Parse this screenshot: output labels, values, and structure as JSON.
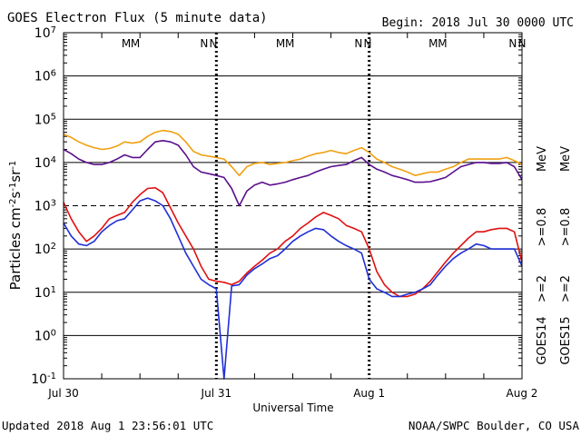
{
  "chart_data": {
    "type": "line",
    "title": "GOES Electron Flux (5 minute data)",
    "begin_label": "Begin: 2018 Jul 30 0000 UTC",
    "xlabel": "Universal Time",
    "ylabel": "Particles cm-2s-1sr-1",
    "y_scale": "log",
    "ylim": [
      0.1,
      10000000
    ],
    "y_ticks": [
      {
        "base": "10",
        "exp": "-1"
      },
      {
        "base": "10",
        "exp": "0"
      },
      {
        "base": "10",
        "exp": "1"
      },
      {
        "base": "10",
        "exp": "2"
      },
      {
        "base": "10",
        "exp": "3"
      },
      {
        "base": "10",
        "exp": "4"
      },
      {
        "base": "10",
        "exp": "5"
      },
      {
        "base": "10",
        "exp": "6"
      },
      {
        "base": "10",
        "exp": "7"
      }
    ],
    "x_range_days": [
      0,
      3
    ],
    "x_tick_labels": [
      "Jul 30",
      "Jul 31",
      "Aug 1",
      "Aug 2"
    ],
    "grid": true,
    "threshold_lines": [
      1000
    ],
    "colors": {
      "goes14_gt2": "#1f2fd6",
      "goes15_gt2": "#e01010",
      "goes14_gt08": "#5a0f8c",
      "goes15_gt08": "#f0a010",
      "M_color_goes14": "#1f2fd6",
      "M_color_goes15": "#e01010"
    },
    "markers": [
      {
        "letter": "M",
        "t": 0.41,
        "sat": "goes14"
      },
      {
        "letter": "M",
        "t": 0.47,
        "sat": "goes15"
      },
      {
        "letter": "N",
        "t": 0.92,
        "sat": "goes14"
      },
      {
        "letter": "N",
        "t": 0.98,
        "sat": "goes15"
      },
      {
        "letter": "M",
        "t": 1.42,
        "sat": "goes14"
      },
      {
        "letter": "M",
        "t": 1.48,
        "sat": "goes15"
      },
      {
        "letter": "N",
        "t": 1.93,
        "sat": "goes14"
      },
      {
        "letter": "N",
        "t": 1.99,
        "sat": "goes15"
      },
      {
        "letter": "M",
        "t": 2.42,
        "sat": "goes14"
      },
      {
        "letter": "M",
        "t": 2.48,
        "sat": "goes15"
      },
      {
        "letter": "N",
        "t": 2.94,
        "sat": "goes14"
      },
      {
        "letter": "N",
        "t": 3.0,
        "sat": "goes15"
      }
    ],
    "legend": {
      "gt2_14": ">=2",
      "gt2_15": ">=2",
      "gt08_14": ">=0.8",
      "gt08_15": ">=0.8",
      "mev": "MeV",
      "goes14": "GOES14",
      "goes15": "GOES15"
    },
    "series": [
      {
        "key": "goes15_gt08",
        "t": [
          0,
          0.05,
          0.1,
          0.15,
          0.2,
          0.25,
          0.3,
          0.35,
          0.4,
          0.45,
          0.5,
          0.55,
          0.6,
          0.65,
          0.7,
          0.75,
          0.8,
          0.85,
          0.9,
          0.95,
          1.0,
          1.05,
          1.1,
          1.15,
          1.2,
          1.25,
          1.3,
          1.35,
          1.4,
          1.45,
          1.5,
          1.55,
          1.6,
          1.65,
          1.7,
          1.75,
          1.8,
          1.85,
          1.9,
          1.95,
          2.0,
          2.05,
          2.1,
          2.15,
          2.2,
          2.25,
          2.3,
          2.35,
          2.4,
          2.45,
          2.5,
          2.55,
          2.6,
          2.65,
          2.7,
          2.75,
          2.8,
          2.85,
          2.9,
          2.95,
          3.0
        ],
        "values": [
          45000,
          38000,
          30000,
          25000,
          22000,
          20000,
          21000,
          24000,
          30000,
          28000,
          30000,
          40000,
          50000,
          55000,
          52000,
          45000,
          30000,
          18000,
          15000,
          14000,
          13000,
          12000,
          8000,
          5000,
          8000,
          9500,
          10000,
          9000,
          9500,
          10000,
          11000,
          12000,
          14000,
          16000,
          17000,
          19000,
          17000,
          16000,
          19000,
          22000,
          17000,
          12000,
          10000,
          8000,
          7000,
          6000,
          5000,
          5500,
          6000,
          6000,
          7000,
          8000,
          10000,
          12000,
          12000,
          12000,
          12000,
          12000,
          13000,
          11000,
          9000
        ]
      },
      {
        "key": "goes14_gt08",
        "t": [
          0,
          0.05,
          0.1,
          0.15,
          0.2,
          0.25,
          0.3,
          0.35,
          0.4,
          0.45,
          0.5,
          0.55,
          0.6,
          0.65,
          0.7,
          0.75,
          0.8,
          0.85,
          0.9,
          0.95,
          1.0,
          1.05,
          1.1,
          1.15,
          1.2,
          1.25,
          1.3,
          1.35,
          1.4,
          1.45,
          1.5,
          1.55,
          1.6,
          1.65,
          1.7,
          1.75,
          1.8,
          1.85,
          1.9,
          1.95,
          2.0,
          2.05,
          2.1,
          2.15,
          2.2,
          2.25,
          2.3,
          2.35,
          2.4,
          2.45,
          2.5,
          2.55,
          2.6,
          2.65,
          2.7,
          2.75,
          2.8,
          2.85,
          2.9,
          2.95,
          3.0
        ],
        "values": [
          20000,
          16000,
          12000,
          10000,
          9000,
          9000,
          10000,
          12000,
          15000,
          13000,
          13000,
          20000,
          30000,
          32000,
          30000,
          25000,
          15000,
          8000,
          6000,
          5500,
          5000,
          4500,
          2500,
          1000,
          2200,
          3000,
          3500,
          3000,
          3200,
          3500,
          4000,
          4500,
          5000,
          6000,
          7000,
          8000,
          8500,
          9000,
          11000,
          13000,
          9000,
          7000,
          6000,
          5000,
          4500,
          4000,
          3500,
          3500,
          3600,
          4000,
          4500,
          6000,
          8000,
          9000,
          10000,
          10000,
          9500,
          9500,
          10000,
          8000,
          4000
        ]
      },
      {
        "key": "goes15_gt2",
        "t": [
          0,
          0.05,
          0.1,
          0.15,
          0.2,
          0.25,
          0.3,
          0.35,
          0.4,
          0.45,
          0.5,
          0.55,
          0.6,
          0.65,
          0.7,
          0.75,
          0.8,
          0.85,
          0.9,
          0.95,
          1.0,
          1.05,
          1.1,
          1.15,
          1.2,
          1.25,
          1.3,
          1.35,
          1.4,
          1.45,
          1.5,
          1.55,
          1.6,
          1.65,
          1.7,
          1.75,
          1.8,
          1.85,
          1.9,
          1.95,
          2.0,
          2.05,
          2.1,
          2.15,
          2.2,
          2.25,
          2.3,
          2.35,
          2.4,
          2.45,
          2.5,
          2.55,
          2.6,
          2.65,
          2.7,
          2.75,
          2.8,
          2.85,
          2.9,
          2.95,
          3.0
        ],
        "values": [
          1200,
          500,
          250,
          150,
          200,
          300,
          500,
          600,
          700,
          1200,
          1800,
          2500,
          2600,
          2000,
          900,
          400,
          200,
          100,
          40,
          20,
          18,
          17,
          15,
          18,
          28,
          40,
          55,
          80,
          100,
          150,
          200,
          300,
          400,
          550,
          700,
          600,
          500,
          350,
          300,
          250,
          100,
          30,
          15,
          10,
          8,
          8,
          9,
          12,
          18,
          30,
          50,
          80,
          120,
          180,
          250,
          250,
          280,
          300,
          300,
          250,
          50
        ]
      },
      {
        "key": "goes14_gt2",
        "t": [
          0,
          0.05,
          0.1,
          0.15,
          0.2,
          0.25,
          0.3,
          0.35,
          0.4,
          0.45,
          0.5,
          0.55,
          0.6,
          0.65,
          0.7,
          0.75,
          0.8,
          0.85,
          0.9,
          0.95,
          1.0,
          1.05,
          1.1,
          1.15,
          1.2,
          1.25,
          1.3,
          1.35,
          1.4,
          1.45,
          1.5,
          1.55,
          1.6,
          1.65,
          1.7,
          1.75,
          1.8,
          1.85,
          1.9,
          1.95,
          2.0,
          2.05,
          2.1,
          2.15,
          2.2,
          2.25,
          2.3,
          2.35,
          2.4,
          2.45,
          2.5,
          2.55,
          2.6,
          2.65,
          2.7,
          2.75,
          2.8,
          2.85,
          2.9,
          2.95,
          3.0
        ],
        "values": [
          400,
          200,
          130,
          120,
          150,
          250,
          350,
          450,
          500,
          800,
          1300,
          1500,
          1300,
          1000,
          500,
          200,
          80,
          40,
          20,
          15,
          12,
          0.1,
          14,
          15,
          25,
          35,
          45,
          60,
          70,
          100,
          150,
          200,
          250,
          300,
          280,
          200,
          150,
          120,
          100,
          80,
          20,
          12,
          10,
          8,
          8,
          9,
          10,
          12,
          15,
          25,
          40,
          60,
          80,
          100,
          130,
          120,
          100,
          100,
          100,
          100,
          40
        ]
      }
    ]
  },
  "footer": {
    "updated": "Updated 2018 Aug  1 23:56:01 UTC",
    "credit": "NOAA/SWPC Boulder, CO USA"
  }
}
